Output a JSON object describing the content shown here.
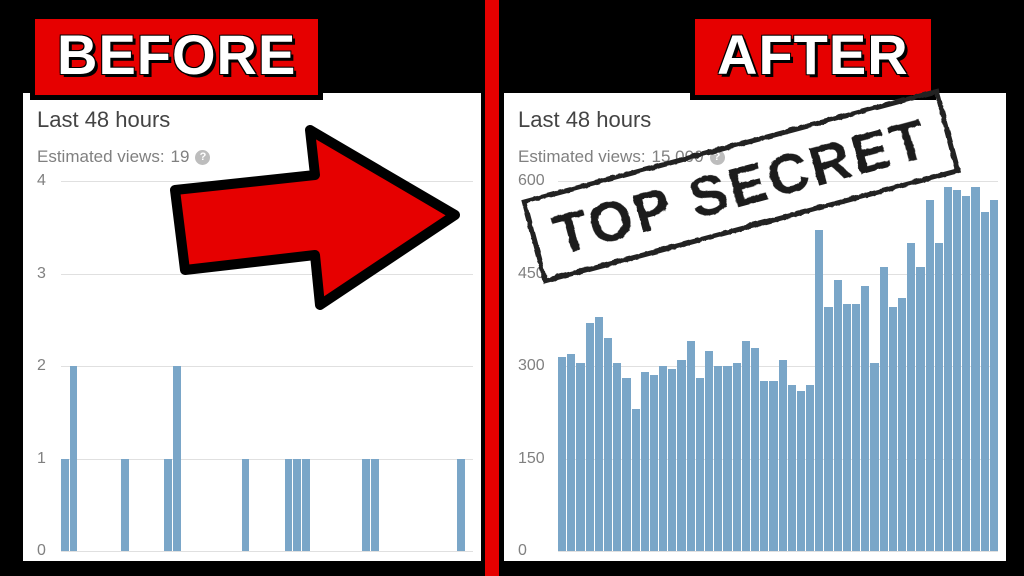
{
  "labels": {
    "before": "BEFORE",
    "after": "AFTER"
  },
  "label_box": {
    "bg": "#e60000",
    "border": "#000000",
    "text_color": "#ffffff",
    "font_size": 56,
    "border_width": 5
  },
  "divider_color": "#e60000",
  "panel_bg": "#ffffff",
  "page_bg": "#000000",
  "before": {
    "period": "Last 48 hours",
    "estimate_label": "Estimated views:",
    "estimate_value": "19",
    "chart": {
      "type": "bar",
      "ymax": 4,
      "yticks": [
        0,
        1,
        2,
        3,
        4
      ],
      "ytick_label_color": "#808080",
      "grid_color": "#e0e0e0",
      "bar_color": "#7aa6c8",
      "values": [
        1,
        2,
        0,
        0,
        0,
        0,
        0,
        1,
        0,
        0,
        0,
        0,
        1,
        2,
        0,
        0,
        0,
        0,
        0,
        0,
        0,
        1,
        0,
        0,
        0,
        0,
        1,
        1,
        1,
        0,
        0,
        0,
        0,
        0,
        0,
        1,
        1,
        0,
        0,
        0,
        0,
        0,
        0,
        0,
        0,
        0,
        1,
        0
      ]
    }
  },
  "after": {
    "period": "Last 48 hours",
    "estimate_label": "Estimated views:",
    "estimate_value": "15,000",
    "chart": {
      "type": "bar",
      "ymax": 600,
      "yticks": [
        0,
        150,
        300,
        450,
        600
      ],
      "ytick_label_color": "#808080",
      "grid_color": "#e0e0e0",
      "bar_color": "#7aa6c8",
      "values": [
        315,
        320,
        305,
        370,
        380,
        345,
        305,
        280,
        230,
        290,
        285,
        300,
        295,
        310,
        340,
        280,
        325,
        300,
        300,
        305,
        340,
        330,
        275,
        275,
        310,
        270,
        260,
        270,
        520,
        395,
        440,
        400,
        400,
        430,
        305,
        460,
        395,
        410,
        500,
        460,
        570,
        500,
        590,
        585,
        575,
        590,
        550,
        570
      ]
    }
  },
  "arrow": {
    "fill": "#e60000",
    "stroke": "#000000",
    "stroke_width": 10
  },
  "stamp": {
    "text": "TOP SECRET",
    "color": "#1a1a1a",
    "font_size": 56,
    "rotation_deg": -15
  },
  "help_tooltip_bg": "#bdbdbd"
}
